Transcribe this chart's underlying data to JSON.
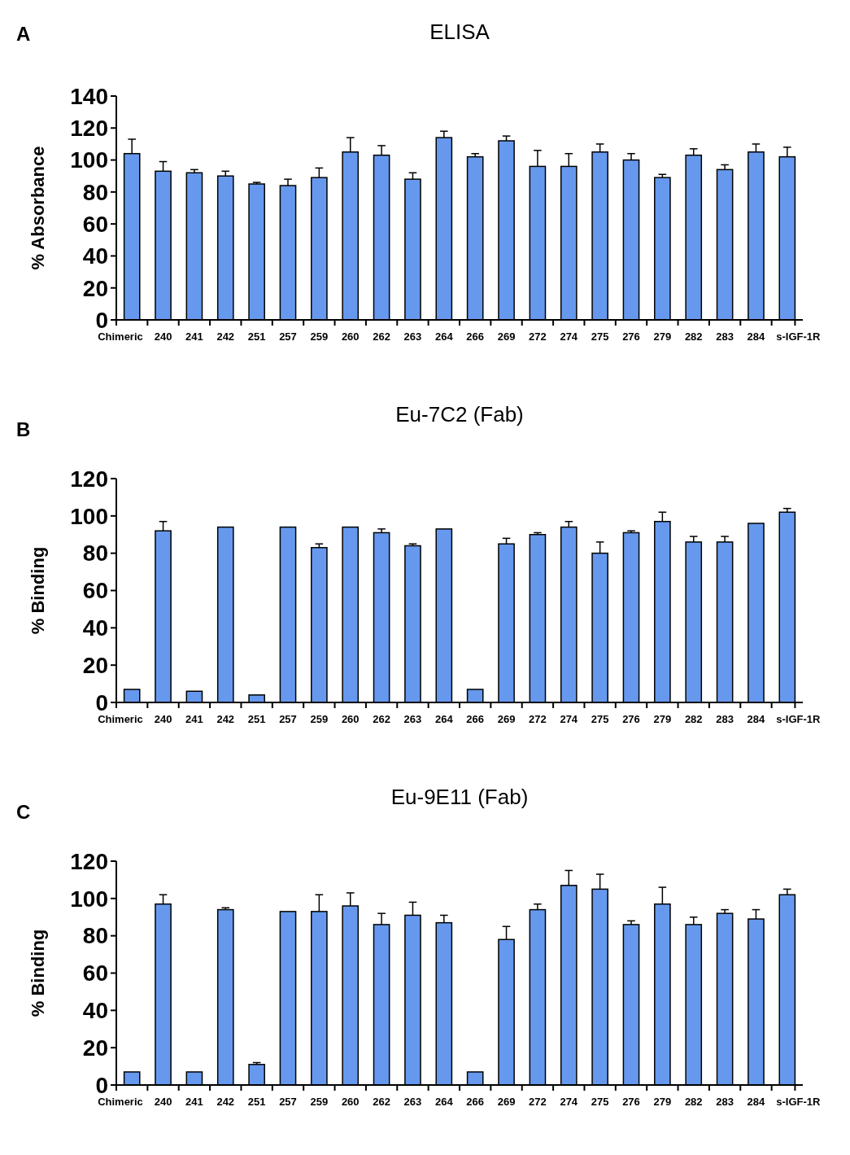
{
  "chart_data": [
    {
      "type": "bar",
      "title": "ELISA",
      "ylabel": "% Absorbance",
      "annotations": [
        "A"
      ],
      "color": "#6699ee",
      "grid": false,
      "categories": [
        "Chimeric",
        "240",
        "241",
        "242",
        "251",
        "257",
        "259",
        "260",
        "262",
        "263",
        "264",
        "266",
        "269",
        "272",
        "274",
        "275",
        "276",
        "279",
        "282",
        "283",
        "284",
        "s-IGF-1R"
      ],
      "values": [
        104,
        93,
        92,
        90,
        85,
        84,
        89,
        105,
        103,
        88,
        114,
        102,
        112,
        96,
        96,
        105,
        100,
        89,
        103,
        94,
        105,
        102
      ],
      "errors": [
        [
          104,
          113
        ],
        [
          93,
          99
        ],
        [
          92,
          94
        ],
        [
          90,
          93
        ],
        [
          85,
          86
        ],
        [
          84,
          88
        ],
        [
          89,
          95
        ],
        [
          105,
          114
        ],
        [
          103,
          109
        ],
        [
          88,
          92
        ],
        [
          114,
          118
        ],
        [
          102,
          104
        ],
        [
          112,
          115
        ],
        [
          96,
          106
        ],
        [
          96,
          104
        ],
        [
          105,
          110
        ],
        [
          100,
          104
        ],
        [
          89,
          91
        ],
        [
          103,
          107
        ],
        [
          94,
          97
        ],
        [
          105,
          110
        ],
        [
          102,
          108
        ]
      ],
      "ylim": [
        0,
        140
      ],
      "yticks": [
        0,
        20,
        40,
        60,
        80,
        100,
        120,
        140
      ]
    },
    {
      "type": "bar",
      "title": "Eu-7C2 (Fab)",
      "ylabel": "% Binding",
      "annotations": [
        "B"
      ],
      "color": "#6699ee",
      "grid": false,
      "categories": [
        "Chimeric",
        "240",
        "241",
        "242",
        "251",
        "257",
        "259",
        "260",
        "262",
        "263",
        "264",
        "266",
        "269",
        "272",
        "274",
        "275",
        "276",
        "279",
        "282",
        "283",
        "284",
        "s-IGF-1R"
      ],
      "values": [
        7,
        92,
        6,
        94,
        4,
        94,
        83,
        94,
        91,
        84,
        93,
        7,
        85,
        90,
        94,
        80,
        91,
        97,
        86,
        86,
        96,
        102
      ],
      "errors": [
        null,
        [
          92,
          97
        ],
        null,
        null,
        null,
        null,
        [
          83,
          85
        ],
        null,
        [
          91,
          93
        ],
        [
          84,
          85
        ],
        null,
        null,
        [
          85,
          88
        ],
        [
          90,
          91
        ],
        [
          94,
          97
        ],
        [
          80,
          86
        ],
        [
          91,
          92
        ],
        [
          97,
          102
        ],
        [
          86,
          89
        ],
        [
          86,
          89
        ],
        null,
        [
          102,
          104
        ]
      ],
      "ylim": [
        0,
        120
      ],
      "yticks": [
        0,
        20,
        40,
        60,
        80,
        100,
        120
      ]
    },
    {
      "type": "bar",
      "title": "Eu-9E11 (Fab)",
      "ylabel": "% Binding",
      "annotations": [
        "C"
      ],
      "color": "#6699ee",
      "grid": false,
      "categories": [
        "Chimeric",
        "240",
        "241",
        "242",
        "251",
        "257",
        "259",
        "260",
        "262",
        "263",
        "264",
        "266",
        "269",
        "272",
        "274",
        "275",
        "276",
        "279",
        "282",
        "283",
        "284",
        "s-IGF-1R"
      ],
      "values": [
        7,
        97,
        7,
        94,
        11,
        93,
        93,
        96,
        86,
        91,
        87,
        7,
        78,
        94,
        107,
        105,
        86,
        97,
        86,
        92,
        89,
        102
      ],
      "errors": [
        null,
        [
          97,
          102
        ],
        null,
        [
          94,
          95
        ],
        [
          11,
          12
        ],
        null,
        [
          93,
          102
        ],
        [
          96,
          103
        ],
        [
          86,
          92
        ],
        [
          91,
          98
        ],
        [
          87,
          91
        ],
        null,
        [
          78,
          85
        ],
        [
          94,
          97
        ],
        [
          107,
          115
        ],
        [
          105,
          113
        ],
        [
          86,
          88
        ],
        [
          97,
          106
        ],
        [
          86,
          90
        ],
        [
          92,
          94
        ],
        [
          89,
          94
        ],
        [
          102,
          105
        ]
      ],
      "ylim": [
        0,
        120
      ],
      "yticks": [
        0,
        20,
        40,
        60,
        80,
        100,
        120
      ]
    }
  ]
}
